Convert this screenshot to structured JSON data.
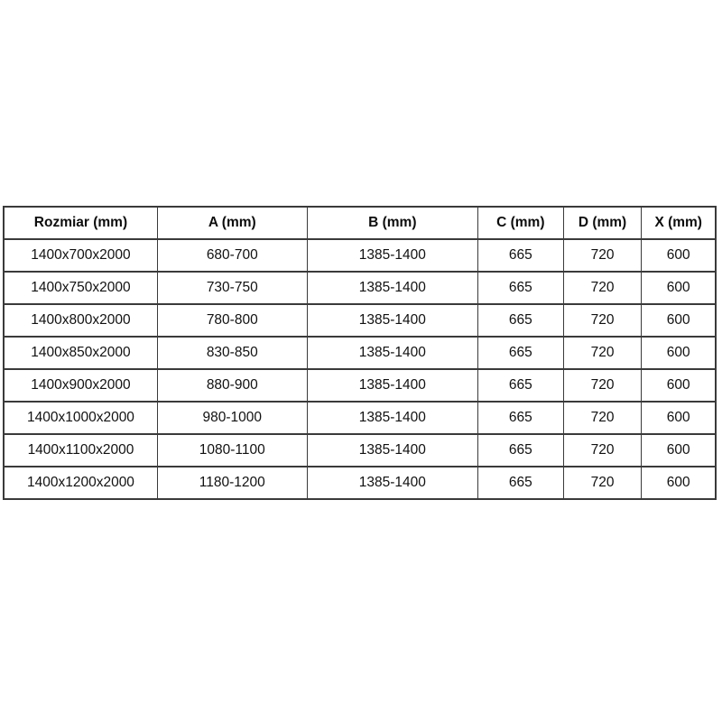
{
  "table": {
    "columns": [
      "Rozmiar (mm)",
      "A (mm)",
      "B (mm)",
      "C (mm)",
      "D (mm)",
      "X (mm)"
    ],
    "rows": [
      [
        "1400x700x2000",
        "680-700",
        "1385-1400",
        "665",
        "720",
        "600"
      ],
      [
        "1400x750x2000",
        "730-750",
        "1385-1400",
        "665",
        "720",
        "600"
      ],
      [
        "1400x800x2000",
        "780-800",
        "1385-1400",
        "665",
        "720",
        "600"
      ],
      [
        "1400x850x2000",
        "830-850",
        "1385-1400",
        "665",
        "720",
        "600"
      ],
      [
        "1400x900x2000",
        "880-900",
        "1385-1400",
        "665",
        "720",
        "600"
      ],
      [
        "1400x1000x2000",
        "980-1000",
        "1385-1400",
        "665",
        "720",
        "600"
      ],
      [
        "1400x1100x2000",
        "1080-1100",
        "1385-1400",
        "665",
        "720",
        "600"
      ],
      [
        "1400x1200x2000",
        "1180-1200",
        "1385-1400",
        "665",
        "720",
        "600"
      ]
    ],
    "border_color": "#3a3a3a",
    "background": "#ffffff"
  },
  "chart_data": {
    "type": "table",
    "title": "",
    "columns": [
      "Rozmiar (mm)",
      "A (mm)",
      "B (mm)",
      "C (mm)",
      "D (mm)",
      "X (mm)"
    ],
    "rows": [
      [
        "1400x700x2000",
        "680-700",
        "1385-1400",
        "665",
        "720",
        "600"
      ],
      [
        "1400x750x2000",
        "730-750",
        "1385-1400",
        "665",
        "720",
        "600"
      ],
      [
        "1400x800x2000",
        "780-800",
        "1385-1400",
        "665",
        "720",
        "600"
      ],
      [
        "1400x850x2000",
        "830-850",
        "1385-1400",
        "665",
        "720",
        "600"
      ],
      [
        "1400x900x2000",
        "880-900",
        "1385-1400",
        "665",
        "720",
        "600"
      ],
      [
        "1400x1000x2000",
        "980-1000",
        "1385-1400",
        "665",
        "720",
        "600"
      ],
      [
        "1400x1100x2000",
        "1080-1100",
        "1385-1400",
        "665",
        "720",
        "600"
      ],
      [
        "1400x1200x2000",
        "1180-1200",
        "1385-1400",
        "665",
        "720",
        "600"
      ]
    ]
  }
}
